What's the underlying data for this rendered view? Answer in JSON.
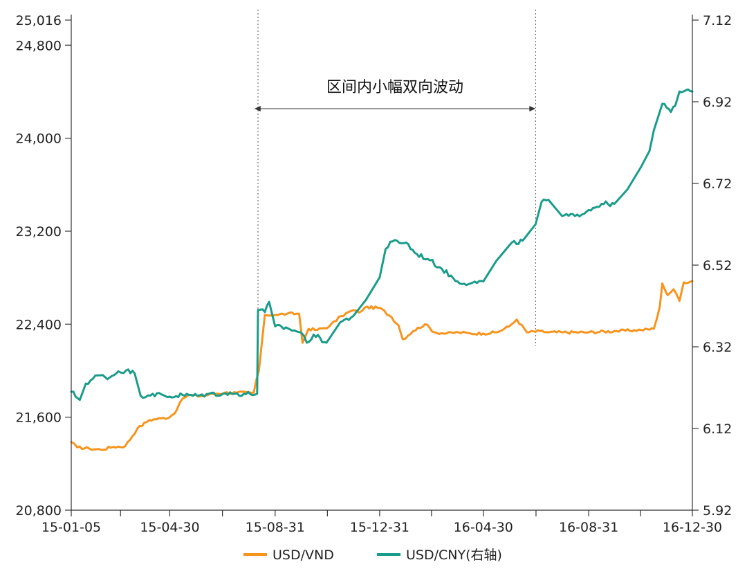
{
  "chart_data": {
    "type": "line",
    "title": "",
    "xlabel": "",
    "ylabel": "",
    "x_tick_labels": [
      "15-01-05",
      "15-04-30",
      "15-08-31",
      "15-12-31",
      "16-04-30",
      "16-08-31",
      "16-12-30"
    ],
    "left_axis": {
      "ylim": [
        20800,
        25016
      ],
      "tick_labels": [
        "20,800",
        "21,600",
        "22,400",
        "23,200",
        "24,000",
        "24,800",
        "25,016"
      ],
      "tick_values": [
        20800,
        21600,
        22400,
        23200,
        24000,
        24800,
        25016
      ]
    },
    "right_axis": {
      "ylim": [
        5.92,
        7.12
      ],
      "tick_labels": [
        "5.92",
        "6.12",
        "6.32",
        "6.52",
        "6.72",
        "6.92",
        "7.12"
      ],
      "tick_values": [
        5.92,
        6.12,
        6.32,
        6.52,
        6.72,
        6.92,
        7.12
      ]
    },
    "series": [
      {
        "name": "USD/VND",
        "axis": "left",
        "color": "#F7941D",
        "points": [
          [
            "2015-01-05",
            21386
          ],
          [
            "2015-01-12",
            21340
          ],
          [
            "2015-01-26",
            21330
          ],
          [
            "2015-02-09",
            21320
          ],
          [
            "2015-02-23",
            21345
          ],
          [
            "2015-03-09",
            21350
          ],
          [
            "2015-03-23",
            21500
          ],
          [
            "2015-04-06",
            21575
          ],
          [
            "2015-04-20",
            21590
          ],
          [
            "2015-04-30",
            21600
          ],
          [
            "2015-05-08",
            21660
          ],
          [
            "2015-05-15",
            21760
          ],
          [
            "2015-05-22",
            21790
          ],
          [
            "2015-06-05",
            21780
          ],
          [
            "2015-06-19",
            21800
          ],
          [
            "2015-07-03",
            21810
          ],
          [
            "2015-07-17",
            21810
          ],
          [
            "2015-08-06",
            21810
          ],
          [
            "2015-08-12",
            22000
          ],
          [
            "2015-08-19",
            22480
          ],
          [
            "2015-08-31",
            22480
          ],
          [
            "2015-09-14",
            22490
          ],
          [
            "2015-09-28",
            22490
          ],
          [
            "2015-10-02",
            22240
          ],
          [
            "2015-10-09",
            22360
          ],
          [
            "2015-10-19",
            22350
          ],
          [
            "2015-11-02",
            22380
          ],
          [
            "2015-11-16",
            22470
          ],
          [
            "2015-11-30",
            22520
          ],
          [
            "2015-12-07",
            22500
          ],
          [
            "2015-12-14",
            22545
          ],
          [
            "2015-12-31",
            22540
          ],
          [
            "2016-01-14",
            22460
          ],
          [
            "2016-01-22",
            22390
          ],
          [
            "2016-01-27",
            22270
          ],
          [
            "2016-02-08",
            22340
          ],
          [
            "2016-02-22",
            22400
          ],
          [
            "2016-03-04",
            22330
          ],
          [
            "2016-03-18",
            22320
          ],
          [
            "2016-04-01",
            22330
          ],
          [
            "2016-04-15",
            22320
          ],
          [
            "2016-04-30",
            22320
          ],
          [
            "2016-05-16",
            22330
          ],
          [
            "2016-05-30",
            22380
          ],
          [
            "2016-06-08",
            22440
          ],
          [
            "2016-06-20",
            22330
          ],
          [
            "2016-07-05",
            22340
          ],
          [
            "2016-07-15",
            22330
          ],
          [
            "2016-08-01",
            22330
          ],
          [
            "2016-08-31",
            22330
          ],
          [
            "2016-09-30",
            22340
          ],
          [
            "2016-10-31",
            22350
          ],
          [
            "2016-11-15",
            22360
          ],
          [
            "2016-11-22",
            22550
          ],
          [
            "2016-11-25",
            22750
          ],
          [
            "2016-12-01",
            22650
          ],
          [
            "2016-12-08",
            22700
          ],
          [
            "2016-12-15",
            22600
          ],
          [
            "2016-12-20",
            22760
          ],
          [
            "2016-12-30",
            22770
          ]
        ]
      },
      {
        "name": "USD/CNY(右轴)",
        "axis": "right",
        "color": "#1A9C8A",
        "points": [
          [
            "2015-01-05",
            6.21
          ],
          [
            "2015-01-15",
            6.19
          ],
          [
            "2015-01-22",
            6.23
          ],
          [
            "2015-02-05",
            6.25
          ],
          [
            "2015-02-19",
            6.245
          ],
          [
            "2015-03-01",
            6.26
          ],
          [
            "2015-03-10",
            6.262
          ],
          [
            "2015-03-20",
            6.255
          ],
          [
            "2015-03-27",
            6.2
          ],
          [
            "2015-04-10",
            6.205
          ],
          [
            "2015-04-30",
            6.198
          ],
          [
            "2015-05-15",
            6.202
          ],
          [
            "2015-06-01",
            6.2
          ],
          [
            "2015-06-15",
            6.205
          ],
          [
            "2015-07-01",
            6.205
          ],
          [
            "2015-07-15",
            6.205
          ],
          [
            "2015-08-10",
            6.205
          ],
          [
            "2015-08-11",
            6.41
          ],
          [
            "2015-08-19",
            6.405
          ],
          [
            "2015-08-24",
            6.43
          ],
          [
            "2015-08-31",
            6.37
          ],
          [
            "2015-09-15",
            6.365
          ],
          [
            "2015-09-30",
            6.355
          ],
          [
            "2015-10-07",
            6.33
          ],
          [
            "2015-10-15",
            6.35
          ],
          [
            "2015-10-30",
            6.33
          ],
          [
            "2015-11-15",
            6.38
          ],
          [
            "2015-11-30",
            6.395
          ],
          [
            "2015-12-15",
            6.435
          ],
          [
            "2015-12-31",
            6.49
          ],
          [
            "2016-01-07",
            6.56
          ],
          [
            "2016-01-15",
            6.578
          ],
          [
            "2016-01-31",
            6.575
          ],
          [
            "2016-02-10",
            6.55
          ],
          [
            "2016-02-25",
            6.535
          ],
          [
            "2016-03-10",
            6.515
          ],
          [
            "2016-03-31",
            6.48
          ],
          [
            "2016-04-15",
            6.475
          ],
          [
            "2016-04-30",
            6.48
          ],
          [
            "2016-05-15",
            6.53
          ],
          [
            "2016-05-31",
            6.57
          ],
          [
            "2016-06-15",
            6.58
          ],
          [
            "2016-06-30",
            6.62
          ],
          [
            "2016-07-07",
            6.675
          ],
          [
            "2016-07-15",
            6.68
          ],
          [
            "2016-07-31",
            6.64
          ],
          [
            "2016-08-15",
            6.64
          ],
          [
            "2016-08-31",
            6.655
          ],
          [
            "2016-09-15",
            6.67
          ],
          [
            "2016-09-30",
            6.67
          ],
          [
            "2016-10-15",
            6.705
          ],
          [
            "2016-10-31",
            6.76
          ],
          [
            "2016-11-10",
            6.8
          ],
          [
            "2016-11-15",
            6.85
          ],
          [
            "2016-11-25",
            6.915
          ],
          [
            "2016-12-05",
            6.895
          ],
          [
            "2016-12-10",
            6.91
          ],
          [
            "2016-12-15",
            6.945
          ],
          [
            "2016-12-30",
            6.945
          ]
        ]
      }
    ],
    "annotations": [
      {
        "text": "区间内小幅双向波动",
        "arrow_from": "2015-08-31",
        "arrow_to": "2016-06-30"
      }
    ],
    "vertical_reference_lines": [
      "2015-08-11",
      "2016-06-30"
    ],
    "legend": {
      "position": "bottom",
      "entries": [
        "USD/VND",
        "USD/CNY(右轴)"
      ]
    },
    "grid": false
  }
}
